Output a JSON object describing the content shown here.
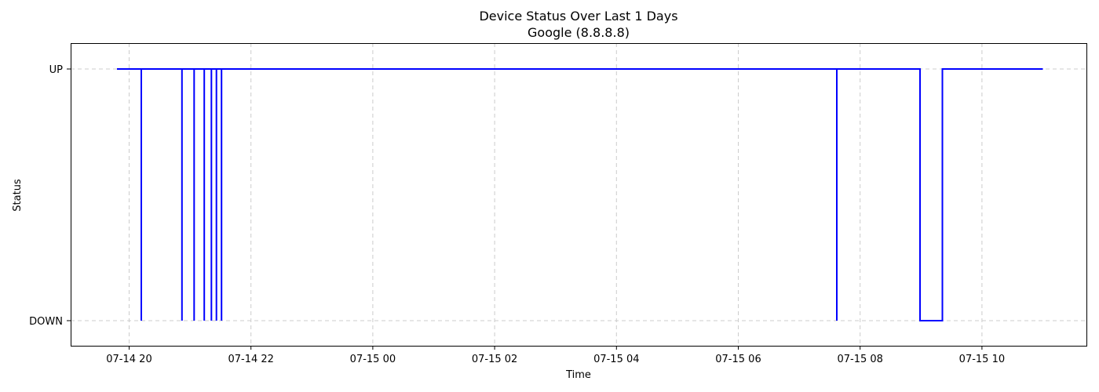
{
  "chart_data": {
    "type": "line",
    "title": "Device Status Over Last 1 Days",
    "subtitle": "Google (8.8.8.8)",
    "xlabel": "Time",
    "ylabel": "Status",
    "x_ticks": [
      "07-14 20",
      "07-14 22",
      "07-15 00",
      "07-15 02",
      "07-15 04",
      "07-15 06",
      "07-15 08",
      "07-15 10"
    ],
    "y_categories": [
      "DOWN",
      "UP"
    ],
    "grid": true,
    "series": [
      {
        "color": "#0000ff",
        "points": [
          {
            "x": "2024-07-14 19:48",
            "y": "UP"
          },
          {
            "x": "2024-07-14 20:12",
            "y": "UP"
          },
          {
            "x": "2024-07-14 20:12",
            "y": "DOWN"
          },
          {
            "x": "2024-07-14 20:12",
            "y": "UP"
          },
          {
            "x": "2024-07-14 20:52",
            "y": "UP"
          },
          {
            "x": "2024-07-14 20:52",
            "y": "DOWN"
          },
          {
            "x": "2024-07-14 20:52",
            "y": "UP"
          },
          {
            "x": "2024-07-14 21:04",
            "y": "UP"
          },
          {
            "x": "2024-07-14 21:04",
            "y": "DOWN"
          },
          {
            "x": "2024-07-14 21:04",
            "y": "UP"
          },
          {
            "x": "2024-07-14 21:14",
            "y": "UP"
          },
          {
            "x": "2024-07-14 21:14",
            "y": "DOWN"
          },
          {
            "x": "2024-07-14 21:14",
            "y": "UP"
          },
          {
            "x": "2024-07-14 21:21",
            "y": "UP"
          },
          {
            "x": "2024-07-14 21:21",
            "y": "DOWN"
          },
          {
            "x": "2024-07-14 21:21",
            "y": "UP"
          },
          {
            "x": "2024-07-14 21:26",
            "y": "UP"
          },
          {
            "x": "2024-07-14 21:26",
            "y": "DOWN"
          },
          {
            "x": "2024-07-14 21:26",
            "y": "UP"
          },
          {
            "x": "2024-07-14 21:31",
            "y": "UP"
          },
          {
            "x": "2024-07-14 21:31",
            "y": "DOWN"
          },
          {
            "x": "2024-07-14 21:31",
            "y": "UP"
          },
          {
            "x": "2024-07-15 07:37",
            "y": "UP"
          },
          {
            "x": "2024-07-15 07:37",
            "y": "DOWN"
          },
          {
            "x": "2024-07-15 07:37",
            "y": "UP"
          },
          {
            "x": "2024-07-15 08:59",
            "y": "UP"
          },
          {
            "x": "2024-07-15 08:59",
            "y": "DOWN"
          },
          {
            "x": "2024-07-15 09:21",
            "y": "DOWN"
          },
          {
            "x": "2024-07-15 09:21",
            "y": "UP"
          },
          {
            "x": "2024-07-15 11:00",
            "y": "UP"
          }
        ]
      }
    ]
  }
}
